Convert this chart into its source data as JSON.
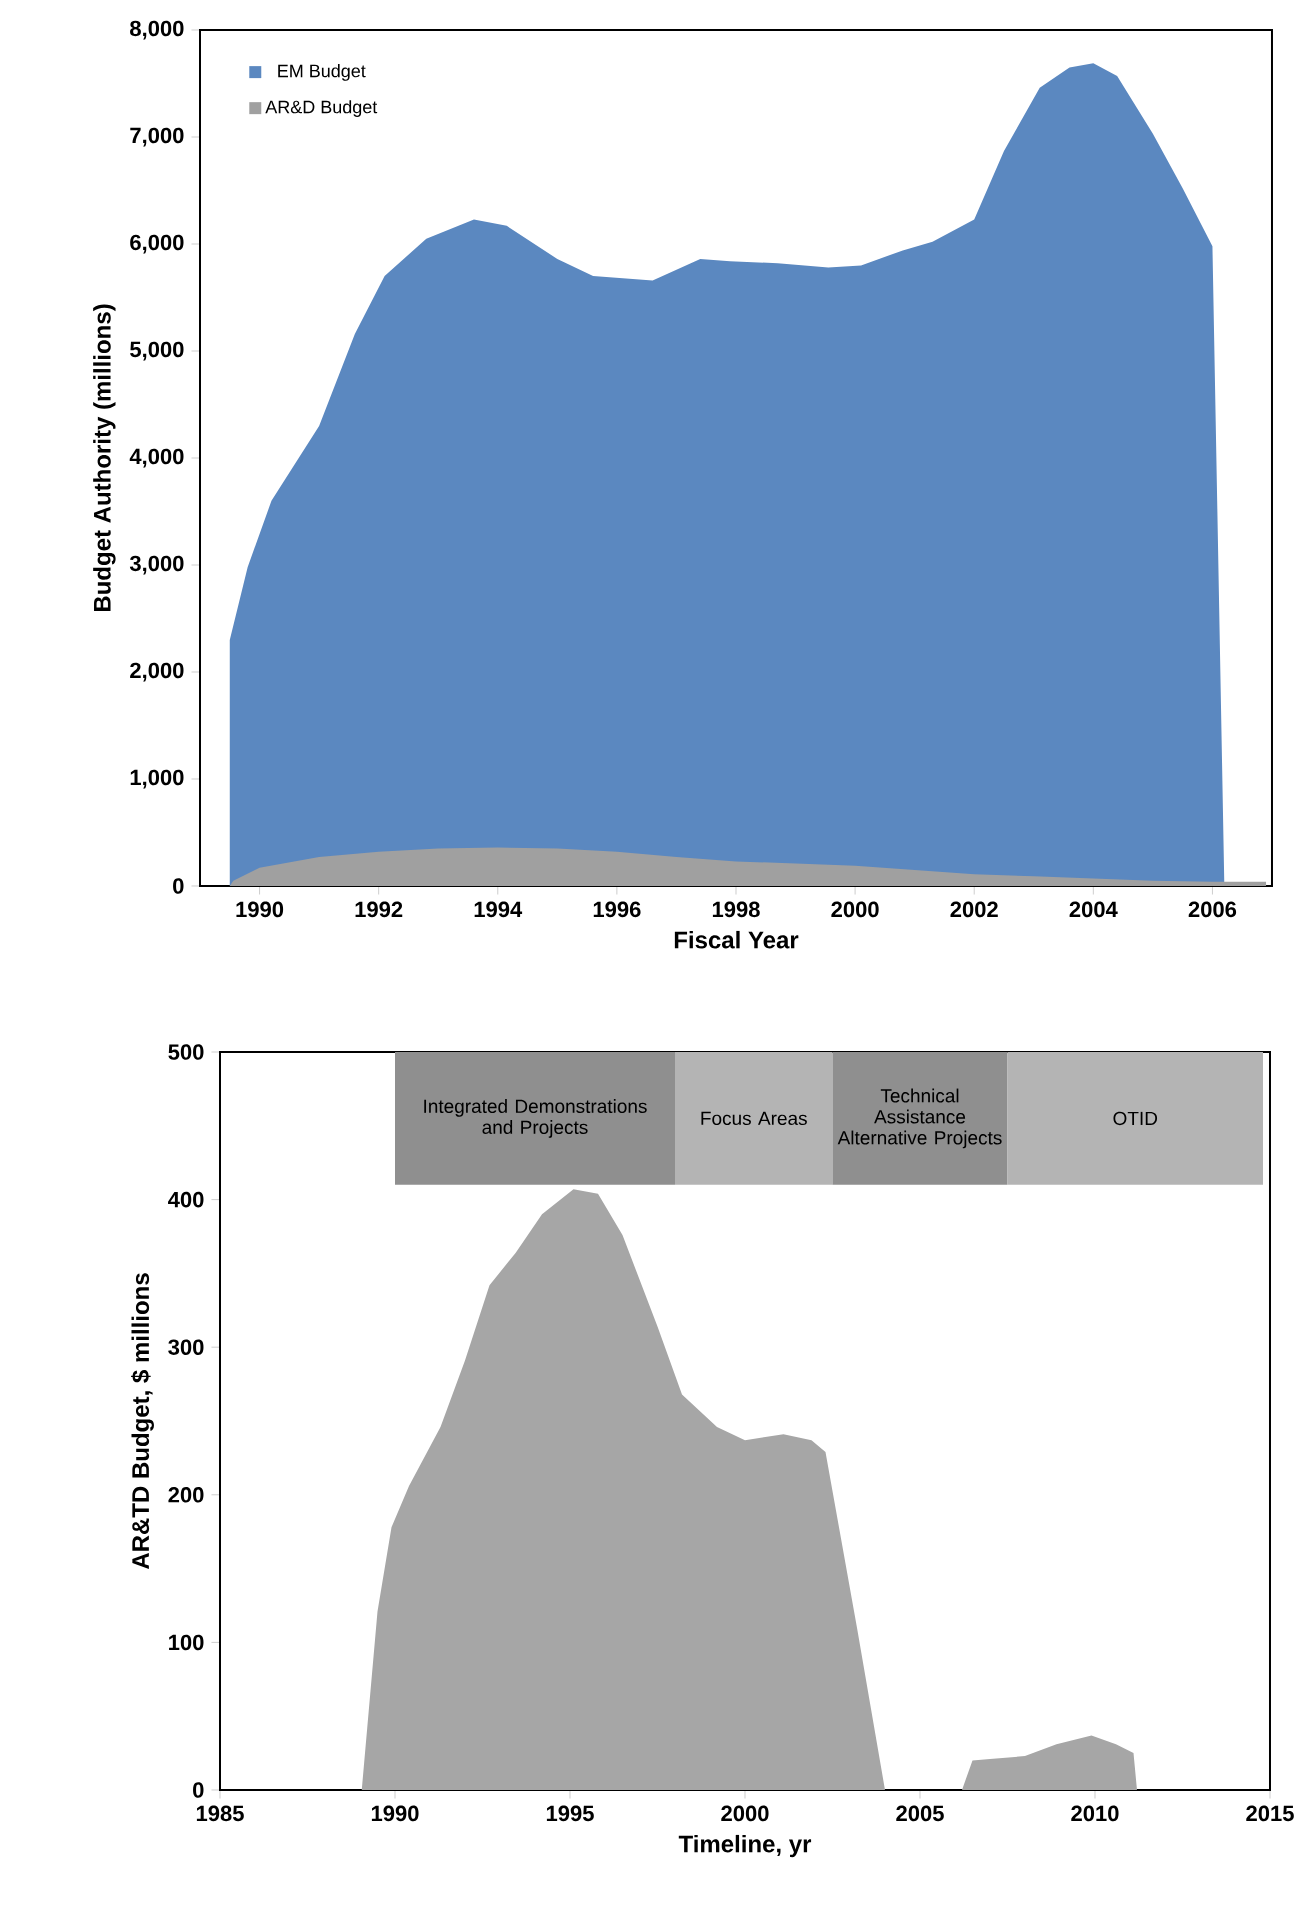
{
  "chart_data": [
    {
      "type": "area",
      "xlabel": "Fiscal Year",
      "ylabel": "Budget Authority (millions)",
      "xlim": [
        1989,
        2007
      ],
      "xticks": [
        1990,
        1992,
        1994,
        1996,
        1998,
        2000,
        2002,
        2004,
        2006
      ],
      "ylim": [
        0,
        8000
      ],
      "yticks": [
        0,
        {
          "value": 1000,
          "label": "1,000"
        },
        {
          "value": 2000,
          "label": "2,000"
        },
        {
          "value": 3000,
          "label": "3,000"
        },
        {
          "value": 4000,
          "label": "4,000"
        },
        {
          "value": 5000,
          "label": "5,000"
        },
        {
          "value": 6000,
          "label": "6,000"
        },
        {
          "value": 7000,
          "label": "7,000"
        },
        {
          "value": 8000,
          "label": "8,000"
        }
      ],
      "legend": "top left",
      "series": [
        {
          "name": "EM Budget",
          "color": "#5b88c0",
          "x": [
            1989.5,
            1989.8,
            1990.2,
            1991,
            1991.6,
            1992.1,
            1992.8,
            1993.6,
            1994.15,
            1995,
            1995.6,
            1996.6,
            1997.4,
            1997.9,
            1998.7,
            1999.55,
            2000.1,
            2000.8,
            2001.3,
            2002,
            2002.5,
            2003.1,
            2003.6,
            2004,
            2004.4,
            2005,
            2005.5,
            2006,
            2006.2
          ],
          "values": [
            2300,
            2980,
            3600,
            4300,
            5160,
            5700,
            6050,
            6230,
            6170,
            5860,
            5700,
            5660,
            5860,
            5840,
            5820,
            5780,
            5800,
            5940,
            6020,
            6230,
            6870,
            7460,
            7650,
            7690,
            7570,
            7030,
            6520,
            5980,
            0
          ]
        },
        {
          "name": "AR&D Budget",
          "color": "#a0a0a0",
          "x": [
            1989.5,
            1989.56,
            1990,
            1991,
            1992,
            1993,
            1994,
            1995,
            1996,
            1997,
            1998,
            1999,
            2000,
            2001,
            2002,
            2003,
            2004,
            2005,
            2006,
            2006.9
          ],
          "values": [
            0,
            50,
            170,
            270,
            320,
            350,
            360,
            350,
            320,
            270,
            230,
            210,
            190,
            150,
            110,
            90,
            70,
            50,
            40,
            40
          ]
        }
      ]
    },
    {
      "type": "area",
      "xlabel": "Timeline, yr",
      "ylabel": "AR&TD Budget, $ millions",
      "xlim": [
        1985,
        2015
      ],
      "xticks": [
        1985,
        1990,
        1995,
        2000,
        2005,
        2010,
        2015
      ],
      "ylim": [
        0,
        500
      ],
      "yticks": [
        0,
        100,
        200,
        300,
        400,
        500
      ],
      "bands": [
        {
          "axis": "x",
          "from": 1990,
          "to": 1998,
          "label": "Integrated Demonstrations and Projects",
          "color": "#8f8f8f"
        },
        {
          "axis": "x",
          "from": 1998,
          "to": 2002.5,
          "label": "Focus Areas",
          "color": "#b4b4b4"
        },
        {
          "axis": "x",
          "from": 2002.5,
          "to": 2007.5,
          "label": "Technical Assistance Alternative Projects",
          "color": "#8f8f8f"
        },
        {
          "axis": "x",
          "from": 2007.5,
          "to": 2014.8,
          "label": "OTID",
          "color": "#b4b4b4"
        }
      ],
      "series": [
        {
          "color": "#a6a6a6",
          "x": [
            1989.05,
            1989.5,
            1989.9,
            1990.4,
            1991.3,
            1992,
            1992.7,
            1993.45,
            1994.2,
            1995.1,
            1995.8,
            1996.5,
            1997.5,
            1998.2,
            1999.2,
            2000,
            2001.1,
            2001.9,
            2002.3,
            2003.2,
            2004
          ],
          "values": [
            0,
            121,
            178,
            206,
            246,
            291,
            342,
            364,
            390,
            407,
            404,
            376,
            314,
            268,
            246,
            237,
            241,
            237,
            229,
            110,
            0
          ]
        },
        {
          "color": "#a6a6a6",
          "x": [
            2006.2,
            2006.5,
            2007,
            2008,
            2008.9,
            2009.9,
            2010.6,
            2011.1,
            2011.2
          ],
          "values": [
            0,
            20,
            21,
            23,
            31,
            37,
            31,
            25,
            0
          ]
        }
      ]
    }
  ]
}
